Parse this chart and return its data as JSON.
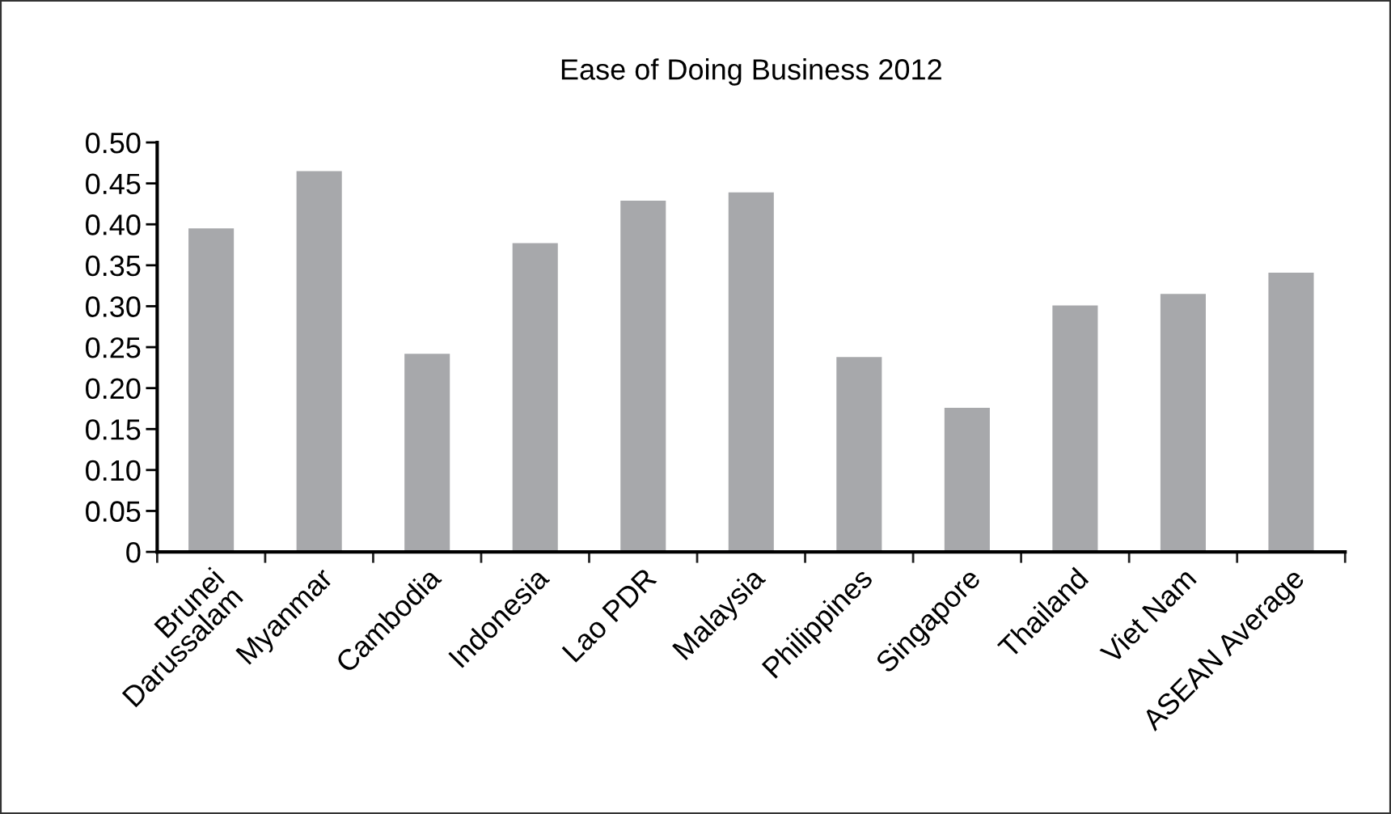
{
  "chart_data": {
    "type": "bar",
    "title": "Ease of Doing Business 2012",
    "categories": [
      "Brunei\nDarussalam",
      "Myanmar",
      "Cambodia",
      "Indonesia",
      "Lao PDR",
      "Malaysia",
      "Philippines",
      "Singapore",
      "Thailand",
      "Viet Nam",
      "ASEAN Average"
    ],
    "values": [
      0.395,
      0.465,
      0.242,
      0.377,
      0.429,
      0.439,
      0.238,
      0.176,
      0.301,
      0.315,
      0.341
    ],
    "color": "#a7a8ab",
    "ylim": [
      0,
      0.5
    ],
    "yticks": [
      0,
      {
        "value": 0.05,
        "label": "0.05"
      },
      {
        "value": 0.1,
        "label": "0.10"
      },
      {
        "value": 0.15,
        "label": "0.15"
      },
      {
        "value": 0.2,
        "label": "0.20"
      },
      {
        "value": 0.25,
        "label": "0.25"
      },
      {
        "value": 0.3,
        "label": "0.30"
      },
      {
        "value": 0.35,
        "label": "0.35"
      },
      {
        "value": 0.4,
        "label": "0.40"
      },
      {
        "value": 0.45,
        "label": "0.45"
      },
      {
        "value": 0.5,
        "label": "0.50"
      }
    ],
    "grid": false,
    "legend": false
  }
}
